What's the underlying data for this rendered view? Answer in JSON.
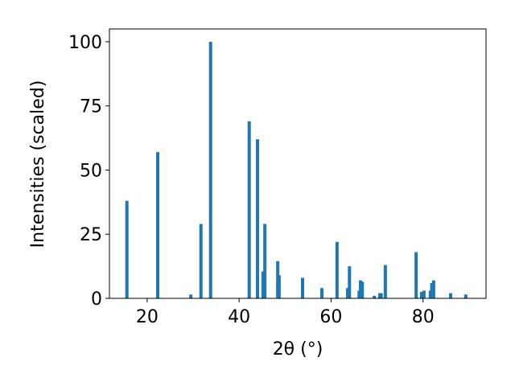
{
  "chart_data": {
    "type": "bar",
    "x_label": "2θ (°)",
    "y_label": "Intensities (scaled)",
    "x": [
      15.6,
      22.3,
      29.5,
      31.7,
      33.8,
      42.2,
      44.0,
      45.2,
      45.6,
      48.4,
      48.7,
      53.8,
      58.0,
      61.3,
      63.6,
      64.0,
      66.1,
      66.4,
      66.8,
      69.4,
      70.6,
      70.9,
      71.8,
      78.5,
      79.7,
      80.2,
      81.6,
      81.9,
      82.3,
      86.0,
      89.3
    ],
    "values": [
      38,
      57,
      1.5,
      29,
      100,
      69,
      62,
      10.5,
      29,
      14.5,
      9,
      8,
      4,
      22,
      4,
      12.5,
      3,
      7,
      6.5,
      1,
      2,
      2,
      13,
      18,
      2.5,
      3,
      3,
      6,
      7,
      2,
      1.5
    ],
    "color": "#1f77b4",
    "xlim": [
      11.8,
      93.7
    ],
    "xticks": [
      20,
      40,
      60,
      80
    ],
    "ylim": [
      0,
      105
    ],
    "yticks": [
      0,
      25,
      50,
      75,
      100
    ]
  }
}
